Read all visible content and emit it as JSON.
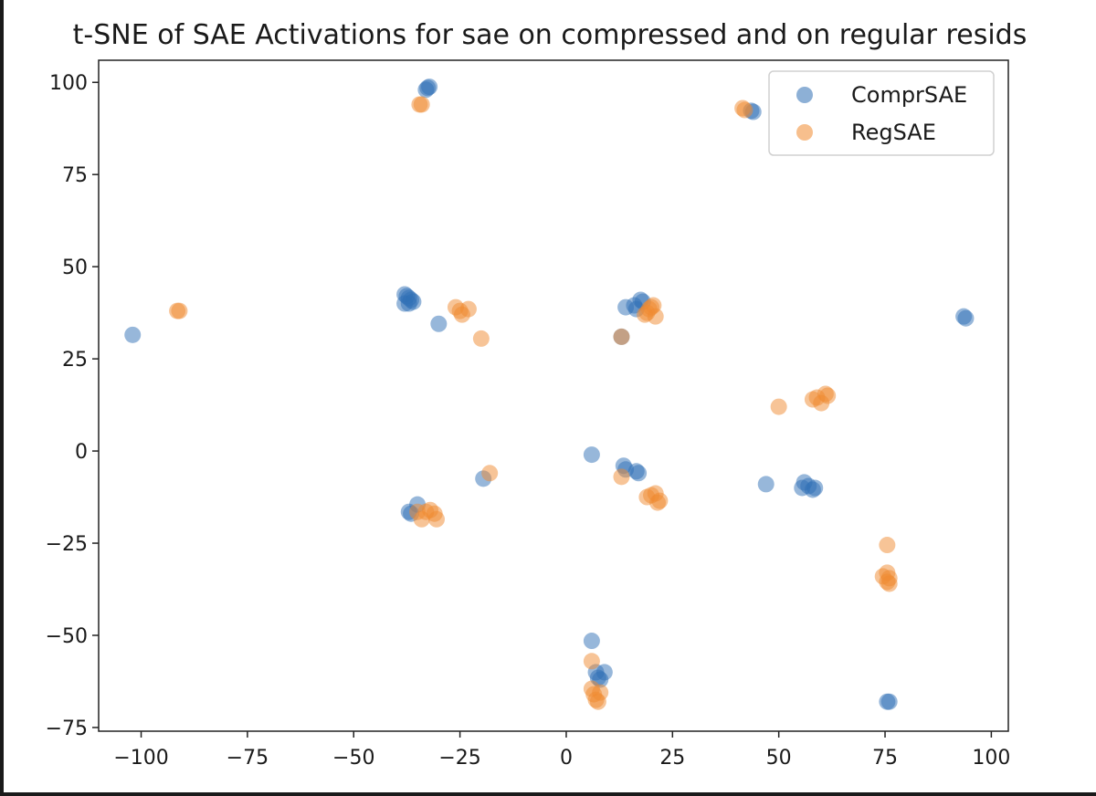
{
  "chart_data": {
    "type": "scatter",
    "title": "t-SNE of SAE Activations for sae on compressed and on regular resids",
    "xlabel": "",
    "ylabel": "",
    "xlim": [
      -110,
      104
    ],
    "ylim": [
      -76,
      106
    ],
    "xticks": [
      -100,
      -75,
      -50,
      -25,
      0,
      25,
      50,
      75,
      100
    ],
    "yticks": [
      -75,
      -50,
      -25,
      0,
      25,
      50,
      75,
      100
    ],
    "xtick_labels": [
      "−100",
      "−75",
      "−50",
      "−25",
      "0",
      "25",
      "50",
      "75",
      "100"
    ],
    "ytick_labels": [
      "−75",
      "−50",
      "−25",
      "0",
      "25",
      "50",
      "75",
      "100"
    ],
    "grid": false,
    "legend_position": "top-right",
    "series": [
      {
        "name": "ComprSAE",
        "color": "#2f6fb5",
        "points": [
          [
            -32.6,
            98.5
          ],
          [
            -33.0,
            98.0
          ],
          [
            -32.2,
            98.8
          ],
          [
            44.0,
            92.0
          ],
          [
            43.5,
            92.3
          ],
          [
            -38.0,
            42.5
          ],
          [
            -37.5,
            42.0
          ],
          [
            -37.0,
            41.5
          ],
          [
            -36.5,
            41.0
          ],
          [
            -36.0,
            40.5
          ],
          [
            -37.0,
            40.0
          ],
          [
            -38.0,
            40.0
          ],
          [
            -30.0,
            34.5
          ],
          [
            -102.0,
            31.5
          ],
          [
            14.0,
            39.0
          ],
          [
            16.0,
            39.5
          ],
          [
            17.5,
            41.0
          ],
          [
            18.0,
            40.5
          ],
          [
            16.5,
            38.5
          ],
          [
            13.0,
            31.0
          ],
          [
            93.5,
            36.5
          ],
          [
            94.0,
            36.0
          ],
          [
            6.0,
            -1.0
          ],
          [
            -19.5,
            -7.5
          ],
          [
            13.5,
            -4.0
          ],
          [
            14.0,
            -5.0
          ],
          [
            16.5,
            -5.5
          ],
          [
            17.0,
            -6.0
          ],
          [
            47.0,
            -9.0
          ],
          [
            55.5,
            -10.0
          ],
          [
            56.0,
            -8.5
          ],
          [
            57.0,
            -9.5
          ],
          [
            58.0,
            -10.5
          ],
          [
            58.5,
            -10.0
          ],
          [
            -35.0,
            -14.5
          ],
          [
            -36.5,
            -17.0
          ],
          [
            -37.0,
            -16.5
          ],
          [
            6.0,
            -51.5
          ],
          [
            7.0,
            -60.0
          ],
          [
            7.5,
            -61.5
          ],
          [
            9.0,
            -60.0
          ],
          [
            8.0,
            -62.0
          ],
          [
            75.5,
            -68.0
          ],
          [
            76.0,
            -68.0
          ]
        ]
      },
      {
        "name": "RegSAE",
        "color": "#f08a30",
        "points": [
          [
            -34.0,
            94.0
          ],
          [
            -34.5,
            94.0
          ],
          [
            41.5,
            93.0
          ],
          [
            42.0,
            92.5
          ],
          [
            -91.5,
            38.0
          ],
          [
            -91.0,
            38.0
          ],
          [
            -26.0,
            39.0
          ],
          [
            -25.0,
            38.0
          ],
          [
            -24.5,
            37.0
          ],
          [
            -23.0,
            38.5
          ],
          [
            -20.0,
            30.5
          ],
          [
            13.0,
            31.0
          ],
          [
            19.0,
            37.5
          ],
          [
            20.0,
            39.0
          ],
          [
            20.5,
            39.5
          ],
          [
            21.0,
            36.5
          ],
          [
            18.5,
            37.0
          ],
          [
            19.5,
            38.5
          ],
          [
            50.0,
            12.0
          ],
          [
            58.0,
            14.0
          ],
          [
            59.0,
            14.5
          ],
          [
            60.0,
            13.0
          ],
          [
            61.0,
            15.5
          ],
          [
            61.5,
            15.0
          ],
          [
            -18.0,
            -6.0
          ],
          [
            13.0,
            -7.0
          ],
          [
            19.0,
            -12.5
          ],
          [
            20.0,
            -12.0
          ],
          [
            21.0,
            -11.5
          ],
          [
            21.5,
            -14.0
          ],
          [
            22.0,
            -13.5
          ],
          [
            -35.0,
            -16.5
          ],
          [
            -34.0,
            -18.5
          ],
          [
            -33.0,
            -16.5
          ],
          [
            -32.0,
            -16.0
          ],
          [
            -31.0,
            -17.0
          ],
          [
            -30.5,
            -18.5
          ],
          [
            75.5,
            -25.5
          ],
          [
            74.5,
            -34.0
          ],
          [
            75.5,
            -33.0
          ],
          [
            76.0,
            -34.5
          ],
          [
            75.5,
            -35.5
          ],
          [
            76.0,
            -36.0
          ],
          [
            6.0,
            -57.0
          ],
          [
            6.0,
            -64.5
          ],
          [
            6.5,
            -66.0
          ],
          [
            7.0,
            -67.5
          ],
          [
            7.5,
            -68.0
          ],
          [
            8.0,
            -65.5
          ]
        ]
      }
    ]
  }
}
